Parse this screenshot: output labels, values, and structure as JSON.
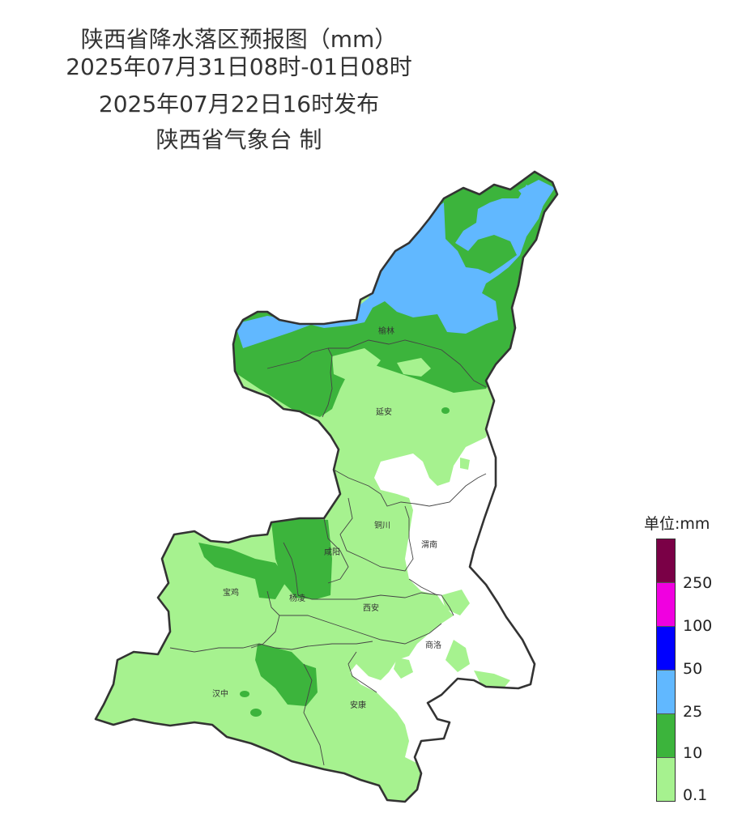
{
  "title": {
    "main": "陕西省降水落区预报图（mm）",
    "period": "2025年07月31日08时-01日08时",
    "issued": "2025年07月22日16时发布",
    "org": "陕西省气象台 制"
  },
  "legend": {
    "unit_label": "单位:mm",
    "levels": [
      {
        "color": "#7a0046",
        "range": "≥250"
      },
      {
        "color": "#f000e0",
        "range": "100-250"
      },
      {
        "color": "#0000ff",
        "range": "50-100"
      },
      {
        "color": "#61b8ff",
        "range": "25-50"
      },
      {
        "color": "#3cb43c",
        "range": "10-25"
      },
      {
        "color": "#a6f28f",
        "range": "0.1-10"
      }
    ],
    "thresholds": [
      "250",
      "100",
      "50",
      "25",
      "10",
      "0.1"
    ]
  },
  "cities": [
    {
      "name": "榆林"
    },
    {
      "name": "延安"
    },
    {
      "name": "铜川"
    },
    {
      "name": "渭南"
    },
    {
      "name": "咸阳"
    },
    {
      "name": "宝鸡"
    },
    {
      "name": "杨凌"
    },
    {
      "name": "西安"
    },
    {
      "name": "商洛"
    },
    {
      "name": "汉中"
    },
    {
      "name": "安康"
    }
  ],
  "colors": {
    "light_rain": "#a6f28f",
    "moderate_rain": "#3cb43c",
    "heavy_rain": "#61b8ff",
    "no_rain": "#ffffff",
    "border": "#333333"
  }
}
